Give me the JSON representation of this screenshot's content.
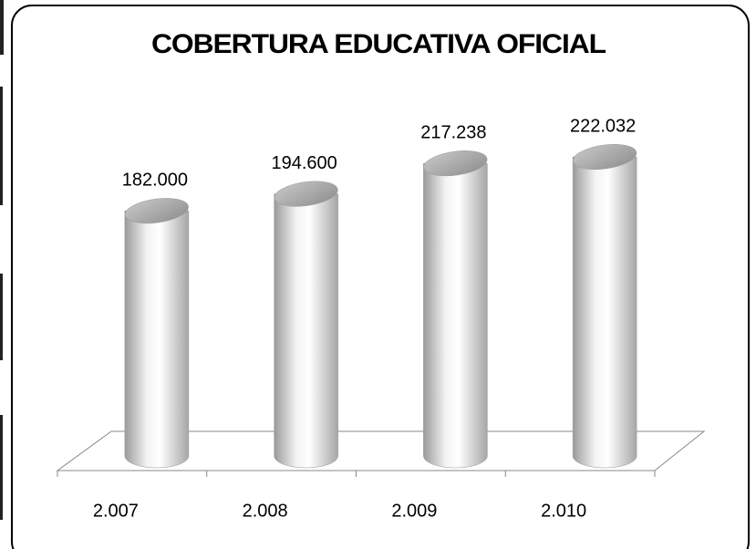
{
  "chart_data": {
    "type": "cylinder-bar",
    "title": "COBERTURA EDUCATIVA OFICIAL",
    "categories": [
      "2.007",
      "2.008",
      "2.009",
      "2.010"
    ],
    "values": [
      182000,
      194600,
      217238,
      222032
    ],
    "value_labels": [
      "182.000",
      "194.600",
      "217.238",
      "222.032"
    ]
  }
}
